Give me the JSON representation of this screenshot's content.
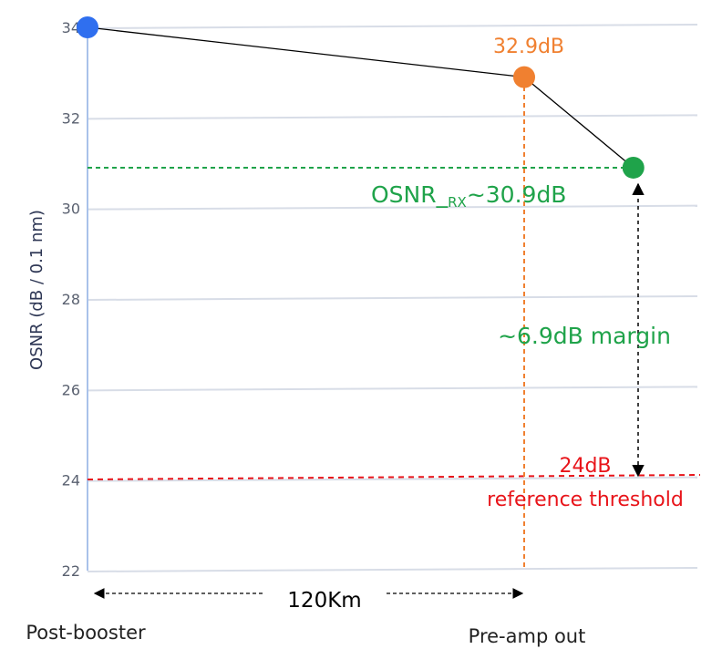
{
  "chart_data": {
    "type": "line",
    "title": "",
    "ylabel": "OSNR (dB / 0.1 nm)",
    "ylim": [
      22,
      34
    ],
    "yticks": [
      "22",
      "24",
      "26",
      "28",
      "30",
      "32",
      "34"
    ],
    "grid": true,
    "points": [
      {
        "label": "Post-booster",
        "km": 0,
        "osnr": 34,
        "color": "#2f6fef",
        "value_label": ""
      },
      {
        "label": "Pre-amp out",
        "km": 120,
        "osnr": 32.9,
        "color": "#f08030",
        "value_label": "32.9dB"
      },
      {
        "label": "",
        "km": 150,
        "osnr": 30.9,
        "color": "#1fa34a",
        "value_label": ""
      }
    ],
    "annotations": {
      "rx_label": "OSNR_",
      "rx_sub": "RX",
      "rx_value": "~30.9dB",
      "margin": "~6.9dB margin",
      "threshold_value": "24dB",
      "threshold_text": "reference threshold",
      "span": "120Km"
    },
    "x_labels": {
      "start": "Post-booster",
      "end": "Pre-amp out"
    },
    "colors": {
      "blue": "#2f6fef",
      "orange": "#f08030",
      "green": "#1fa34a",
      "red": "#e8141a",
      "axis": "#a9c2ea",
      "line": "#000000"
    }
  }
}
